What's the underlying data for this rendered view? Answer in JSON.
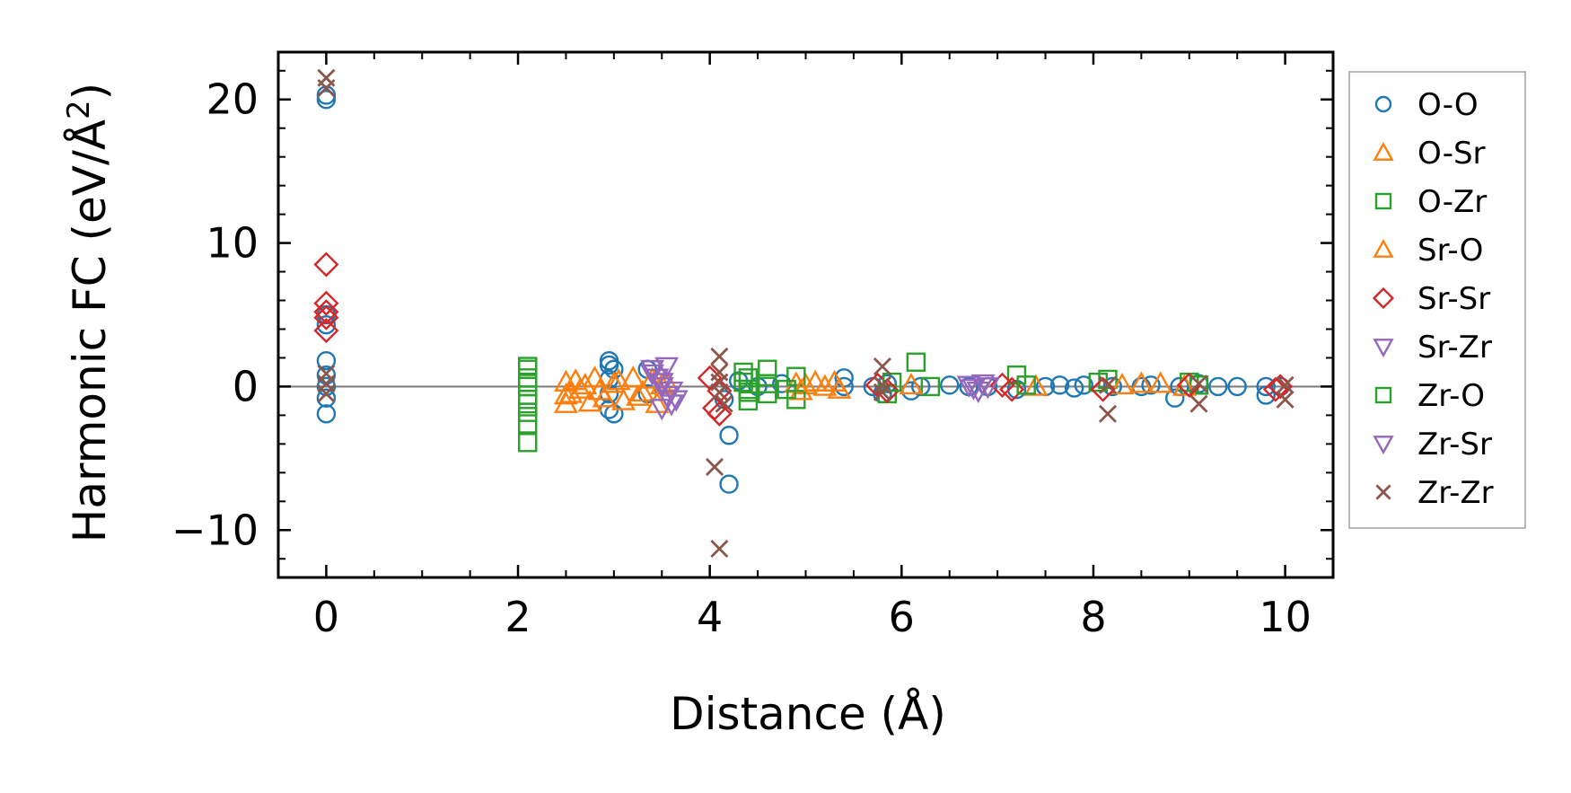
{
  "chart_data": {
    "type": "scatter",
    "xlabel": "Distance (Å)",
    "ylabel_main": "Harmonic FC (eV/Å",
    "ylabel_sup": "2",
    "ylabel_close": ")",
    "xlim": [
      -0.5,
      10.5
    ],
    "ylim": [
      -13.3,
      23.3
    ],
    "xticks": [
      0,
      2,
      4,
      6,
      8,
      10
    ],
    "xtick_labels": [
      "0",
      "2",
      "4",
      "6",
      "8",
      "10"
    ],
    "yticks": [
      -10,
      0,
      10,
      20
    ],
    "ytick_labels": [
      "−10",
      "0",
      "10",
      "20"
    ],
    "reference_line": {
      "y": 0,
      "color": "#808080"
    },
    "legend_position": "outside-right",
    "series": [
      {
        "name": "O-O",
        "marker": "circle",
        "color": "#1f77b4",
        "points": [
          [
            0,
            20.3
          ],
          [
            0,
            20.0
          ],
          [
            0,
            5
          ],
          [
            0,
            4.3
          ],
          [
            0,
            1.8
          ],
          [
            0,
            0.8
          ],
          [
            0,
            0
          ],
          [
            0,
            -0.8
          ],
          [
            0,
            -1.9
          ],
          [
            2.95,
            1.8
          ],
          [
            2.95,
            1.5
          ],
          [
            2.95,
            0.5
          ],
          [
            2.95,
            -0.5
          ],
          [
            2.95,
            -1.6
          ],
          [
            3.0,
            -1.9
          ],
          [
            3.0,
            1.2
          ],
          [
            3.35,
            1.2
          ],
          [
            3.35,
            -0.5
          ],
          [
            4.15,
            -0.9
          ],
          [
            4.2,
            -3.4
          ],
          [
            4.2,
            -6.8
          ],
          [
            4.3,
            0.4
          ],
          [
            4.5,
            0
          ],
          [
            4.75,
            0.2
          ],
          [
            5.4,
            0.6
          ],
          [
            5.4,
            0
          ],
          [
            5.7,
            0
          ],
          [
            5.8,
            -0.5
          ],
          [
            5.85,
            0.2
          ],
          [
            6.1,
            -0.3
          ],
          [
            6.2,
            0
          ],
          [
            6.5,
            0.1
          ],
          [
            6.7,
            0
          ],
          [
            6.9,
            0
          ],
          [
            7.2,
            -0.2
          ],
          [
            7.5,
            0
          ],
          [
            7.65,
            0.1
          ],
          [
            7.8,
            -0.1
          ],
          [
            7.9,
            0.1
          ],
          [
            8.2,
            0
          ],
          [
            8.5,
            0
          ],
          [
            8.6,
            0.1
          ],
          [
            8.85,
            -0.8
          ],
          [
            8.9,
            0
          ],
          [
            9.1,
            0.2
          ],
          [
            9.3,
            0
          ],
          [
            9.5,
            0
          ],
          [
            9.8,
            -0.6
          ],
          [
            9.8,
            0
          ],
          [
            9.95,
            0
          ]
        ]
      },
      {
        "name": "O-Sr",
        "marker": "triangle-up",
        "color": "#ff7f0e",
        "points": [
          [
            2.5,
            0.3
          ],
          [
            2.5,
            -0.6
          ],
          [
            2.5,
            -1.2
          ],
          [
            2.6,
            0.4
          ],
          [
            2.65,
            -0.2
          ],
          [
            2.75,
            -1.1
          ],
          [
            2.8,
            0.6
          ],
          [
            2.85,
            -0.3
          ],
          [
            3.0,
            0.2
          ],
          [
            3.1,
            -1.0
          ],
          [
            3.2,
            0.6
          ],
          [
            3.3,
            -0.4
          ],
          [
            3.4,
            0.5
          ],
          [
            3.45,
            -1.2
          ],
          [
            3.55,
            0.3
          ],
          [
            4.9,
            0.2
          ],
          [
            5.0,
            0.1
          ],
          [
            5.2,
            0
          ],
          [
            5.3,
            0.3
          ],
          [
            8.5,
            0.2
          ],
          [
            8.7,
            0.2
          ]
        ]
      },
      {
        "name": "O-Zr",
        "marker": "square",
        "color": "#2ca02c",
        "points": [
          [
            2.1,
            1.2
          ],
          [
            2.1,
            0.6
          ],
          [
            2.1,
            0
          ],
          [
            2.1,
            -0.6
          ],
          [
            2.1,
            -1.2
          ],
          [
            2.1,
            -1.8
          ],
          [
            2.1,
            -2.6
          ],
          [
            2.1,
            -3.9
          ],
          [
            4.35,
            1.0
          ],
          [
            4.35,
            0.3
          ],
          [
            4.4,
            -0.4
          ],
          [
            4.4,
            -1.0
          ],
          [
            4.6,
            1.2
          ],
          [
            4.6,
            -0.5
          ],
          [
            4.9,
            0.7
          ],
          [
            4.9,
            -0.9
          ],
          [
            5.85,
            -0.5
          ],
          [
            6.15,
            1.7
          ],
          [
            6.3,
            0
          ],
          [
            7.2,
            0.8
          ],
          [
            8.05,
            0.3
          ],
          [
            8.15,
            0.5
          ],
          [
            9.0,
            0.3
          ],
          [
            9.1,
            0.1
          ]
        ]
      },
      {
        "name": "Sr-O",
        "marker": "triangle-up",
        "color": "#ff7f0e",
        "points": [
          [
            2.55,
            -0.5
          ],
          [
            2.7,
            0.1
          ],
          [
            2.9,
            -0.8
          ],
          [
            3.05,
            0.4
          ],
          [
            3.25,
            -0.7
          ],
          [
            3.5,
            0.1
          ],
          [
            4.95,
            -0.3
          ],
          [
            5.1,
            0.3
          ],
          [
            5.35,
            -0.2
          ],
          [
            6.1,
            0.1
          ],
          [
            7.4,
            0
          ],
          [
            8.3,
            0.1
          ],
          [
            8.95,
            0
          ]
        ]
      },
      {
        "name": "Sr-Sr",
        "marker": "diamond",
        "color": "#d62728",
        "points": [
          [
            0,
            8.5
          ],
          [
            0,
            5.8
          ],
          [
            0,
            5.2
          ],
          [
            0,
            4.8
          ],
          [
            0,
            3.9
          ],
          [
            4.0,
            0.6
          ],
          [
            4.05,
            -1.5
          ],
          [
            4.1,
            -1.9
          ],
          [
            4.1,
            -0.3
          ],
          [
            5.75,
            0.1
          ],
          [
            5.85,
            -0.3
          ],
          [
            7.05,
            0.1
          ],
          [
            7.15,
            -0.2
          ],
          [
            8.1,
            -0.2
          ],
          [
            9.0,
            0.1
          ],
          [
            9.95,
            0
          ],
          [
            9.9,
            -0.2
          ]
        ]
      },
      {
        "name": "Sr-Zr",
        "marker": "triangle-down",
        "color": "#9467bd",
        "points": [
          [
            3.4,
            1.2
          ],
          [
            3.45,
            0.6
          ],
          [
            3.5,
            0
          ],
          [
            3.55,
            -0.6
          ],
          [
            3.6,
            -1.2
          ],
          [
            3.55,
            1.4
          ],
          [
            3.5,
            -1.5
          ],
          [
            6.7,
            0.1
          ],
          [
            6.8,
            -0.3
          ],
          [
            6.9,
            0
          ]
        ]
      },
      {
        "name": "Zr-O",
        "marker": "square",
        "color": "#2ca02c",
        "points": [
          [
            2.1,
            1.4
          ],
          [
            2.1,
            0.3
          ],
          [
            2.1,
            -0.9
          ],
          [
            4.4,
            0.6
          ],
          [
            4.4,
            -0.2
          ],
          [
            4.6,
            0.2
          ],
          [
            4.8,
            -0.2
          ],
          [
            5.9,
            0.3
          ],
          [
            7.3,
            0.1
          ]
        ]
      },
      {
        "name": "Zr-Sr",
        "marker": "triangle-down",
        "color": "#9467bd",
        "points": [
          [
            3.4,
            0.9
          ],
          [
            3.5,
            0.3
          ],
          [
            3.6,
            -0.3
          ],
          [
            3.65,
            -0.9
          ],
          [
            6.75,
            -0.1
          ],
          [
            6.85,
            0.2
          ]
        ]
      },
      {
        "name": "Zr-Zr",
        "marker": "x",
        "color": "#8c564b",
        "points": [
          [
            0,
            21.5
          ],
          [
            0,
            20.8
          ],
          [
            0,
            0.9
          ],
          [
            0,
            0.2
          ],
          [
            0,
            -0.5
          ],
          [
            4.05,
            -5.6
          ],
          [
            4.1,
            -11.3
          ],
          [
            4.1,
            2.1
          ],
          [
            4.1,
            1.0
          ],
          [
            4.1,
            0.3
          ],
          [
            4.1,
            -0.4
          ],
          [
            4.15,
            -1.2
          ],
          [
            5.8,
            1.4
          ],
          [
            5.8,
            0.1
          ],
          [
            5.8,
            -0.4
          ],
          [
            8.15,
            -1.9
          ],
          [
            8.15,
            0.1
          ],
          [
            9.1,
            -1.2
          ],
          [
            9.1,
            0.2
          ],
          [
            10.0,
            -0.9
          ],
          [
            10.0,
            0.1
          ]
        ]
      }
    ]
  }
}
